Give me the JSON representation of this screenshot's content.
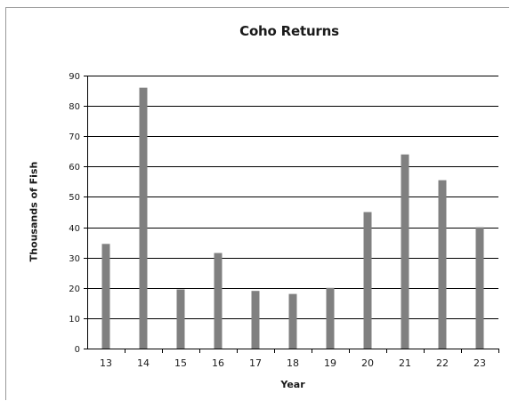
{
  "chart_data": {
    "type": "bar",
    "title": "Coho Returns",
    "xlabel": "Year",
    "ylabel": "Thousands of Fish",
    "categories": [
      "13",
      "14",
      "15",
      "16",
      "17",
      "18",
      "19",
      "20",
      "21",
      "22",
      "23"
    ],
    "values": [
      34.5,
      86,
      19.5,
      31.5,
      19,
      18,
      20,
      45,
      64,
      55.5,
      40
    ],
    "ylim": [
      0,
      90
    ],
    "yticks": [
      "0",
      "10",
      "20",
      "30",
      "40",
      "50",
      "60",
      "70",
      "80",
      "90"
    ],
    "grid": true,
    "legend": "none",
    "bar_color": "#808080",
    "grid_color": "#000000"
  }
}
